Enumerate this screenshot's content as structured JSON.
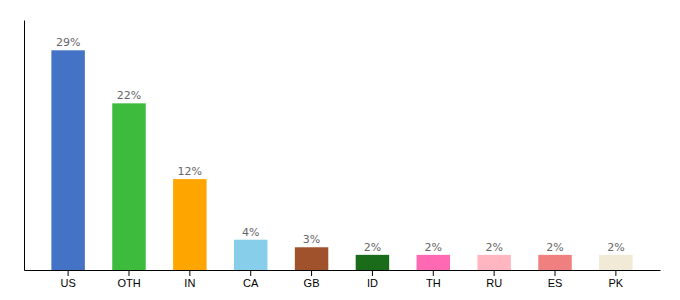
{
  "chart_data": {
    "type": "bar",
    "categories": [
      "US",
      "OTH",
      "IN",
      "CA",
      "GB",
      "ID",
      "TH",
      "RU",
      "ES",
      "PK"
    ],
    "values": [
      29,
      22,
      12,
      4,
      3,
      2,
      2,
      2,
      2,
      2
    ],
    "value_labels": [
      "29%",
      "22%",
      "12%",
      "4%",
      "3%",
      "2%",
      "2%",
      "2%",
      "2%",
      "2%"
    ],
    "colors": [
      "#4472c4",
      "#3dbb3d",
      "#ffa500",
      "#87ceeb",
      "#a0522d",
      "#1a6b1a",
      "#ff69b4",
      "#ffb6c1",
      "#f08080",
      "#f0ead6"
    ],
    "ylim": [
      0,
      33
    ],
    "data_labels": true,
    "tick_labels": "x"
  }
}
